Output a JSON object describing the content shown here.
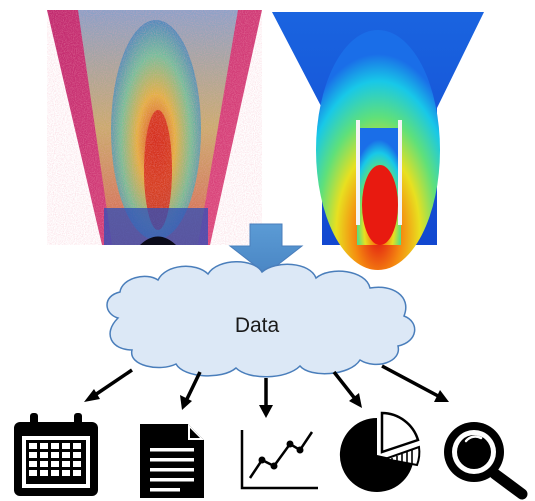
{
  "diagram": {
    "cloud_label": "Data",
    "simulations": [
      {
        "name": "particle-simulation-funnel",
        "style": "particle-scatter"
      },
      {
        "name": "flow-field-funnel",
        "style": "contour"
      }
    ],
    "outputs": [
      {
        "icon": "calendar-icon"
      },
      {
        "icon": "document-icon"
      },
      {
        "icon": "line-chart-icon"
      },
      {
        "icon": "pie-chart-icon"
      },
      {
        "icon": "magnifier-icon"
      }
    ],
    "colors": {
      "arrow_fill": "#5b9bd5",
      "cloud_fill": "#dce8f6",
      "cloud_stroke": "#4a7ebb",
      "icon": "#000000"
    }
  }
}
